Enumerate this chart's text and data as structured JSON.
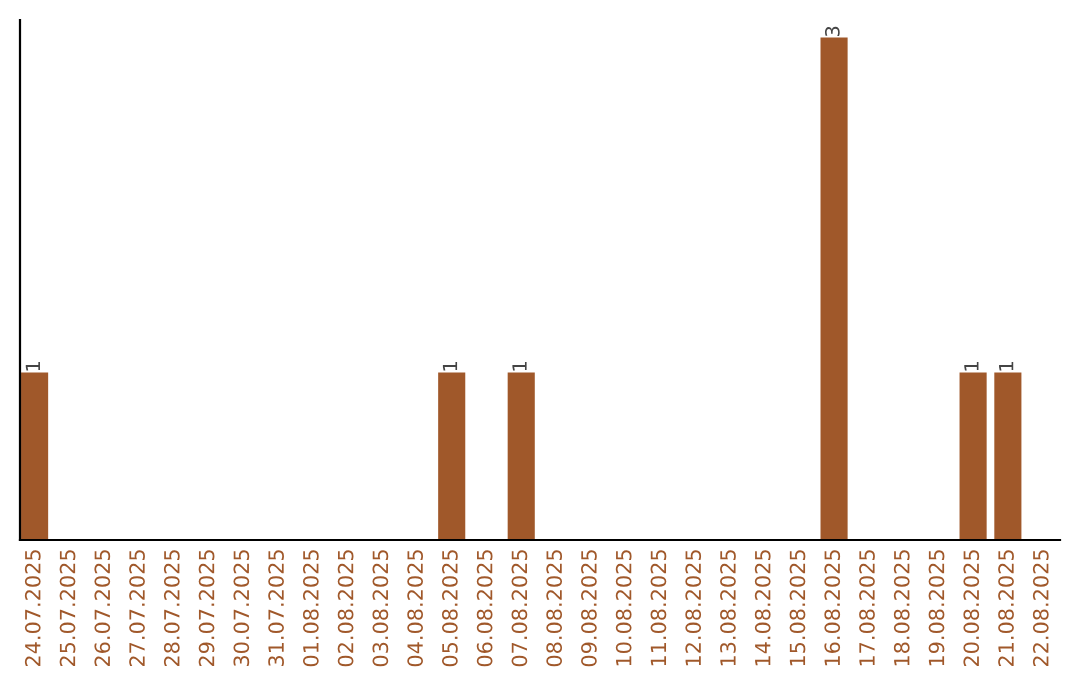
{
  "chart_data": {
    "type": "bar",
    "categories": [
      "24.07.2025",
      "25.07.2025",
      "26.07.2025",
      "27.07.2025",
      "28.07.2025",
      "29.07.2025",
      "30.07.2025",
      "31.07.2025",
      "01.08.2025",
      "02.08.2025",
      "03.08.2025",
      "04.08.2025",
      "05.08.2025",
      "06.08.2025",
      "07.08.2025",
      "08.08.2025",
      "09.08.2025",
      "10.08.2025",
      "11.08.2025",
      "12.08.2025",
      "13.08.2025",
      "14.08.2025",
      "15.08.2025",
      "16.08.2025",
      "17.08.2025",
      "18.08.2025",
      "19.08.2025",
      "20.08.2025",
      "21.08.2025",
      "22.08.2025"
    ],
    "values": [
      1,
      0,
      0,
      0,
      0,
      0,
      0,
      0,
      0,
      0,
      0,
      0,
      1,
      0,
      1,
      0,
      0,
      0,
      0,
      0,
      0,
      0,
      0,
      3,
      0,
      0,
      0,
      1,
      1,
      0
    ],
    "value_labels": [
      "1",
      null,
      null,
      null,
      null,
      null,
      null,
      null,
      null,
      null,
      null,
      null,
      "1",
      null,
      "1",
      null,
      null,
      null,
      null,
      null,
      null,
      null,
      null,
      "3",
      null,
      null,
      null,
      "1",
      "1",
      null
    ],
    "color": "#a0582a",
    "tick_labels": "x",
    "grid": false,
    "legend": false
  }
}
